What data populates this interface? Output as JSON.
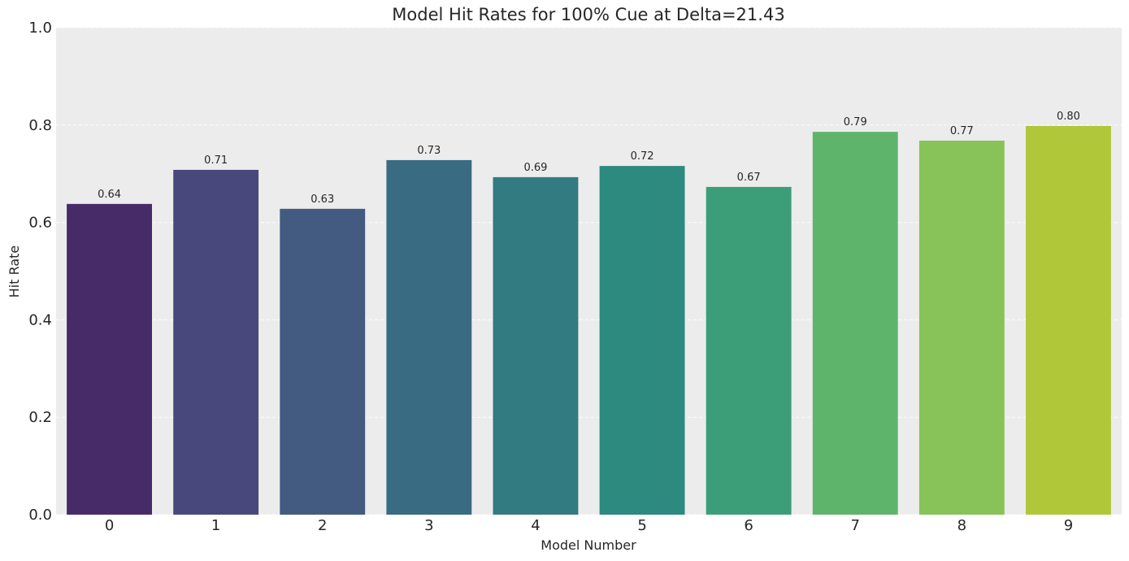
{
  "chart_data": {
    "type": "bar",
    "title": "Model Hit Rates for 100% Cue at Delta=21.43",
    "xlabel": "Model Number",
    "ylabel": "Hit Rate",
    "categories": [
      "0",
      "1",
      "2",
      "3",
      "4",
      "5",
      "6",
      "7",
      "8",
      "9"
    ],
    "values": [
      0.638,
      0.708,
      0.628,
      0.728,
      0.693,
      0.716,
      0.673,
      0.786,
      0.768,
      0.798
    ],
    "value_labels": [
      "0.64",
      "0.71",
      "0.63",
      "0.73",
      "0.69",
      "0.72",
      "0.67",
      "0.79",
      "0.77",
      "0.80"
    ],
    "ylim": [
      0,
      1.0
    ],
    "yticks": [
      0.0,
      0.2,
      0.4,
      0.6,
      0.8,
      1.0
    ],
    "ytick_labels": [
      "0.0",
      "0.2",
      "0.4",
      "0.6",
      "0.8",
      "1.0"
    ],
    "grid": true,
    "legend": "none",
    "background_color": "#ececec",
    "bar_colors": [
      "#472b69",
      "#49487c",
      "#435b81",
      "#396b82",
      "#317b81",
      "#2c8a7e",
      "#3c9e78",
      "#5fb46c",
      "#88c35a",
      "#b0c73a"
    ]
  }
}
